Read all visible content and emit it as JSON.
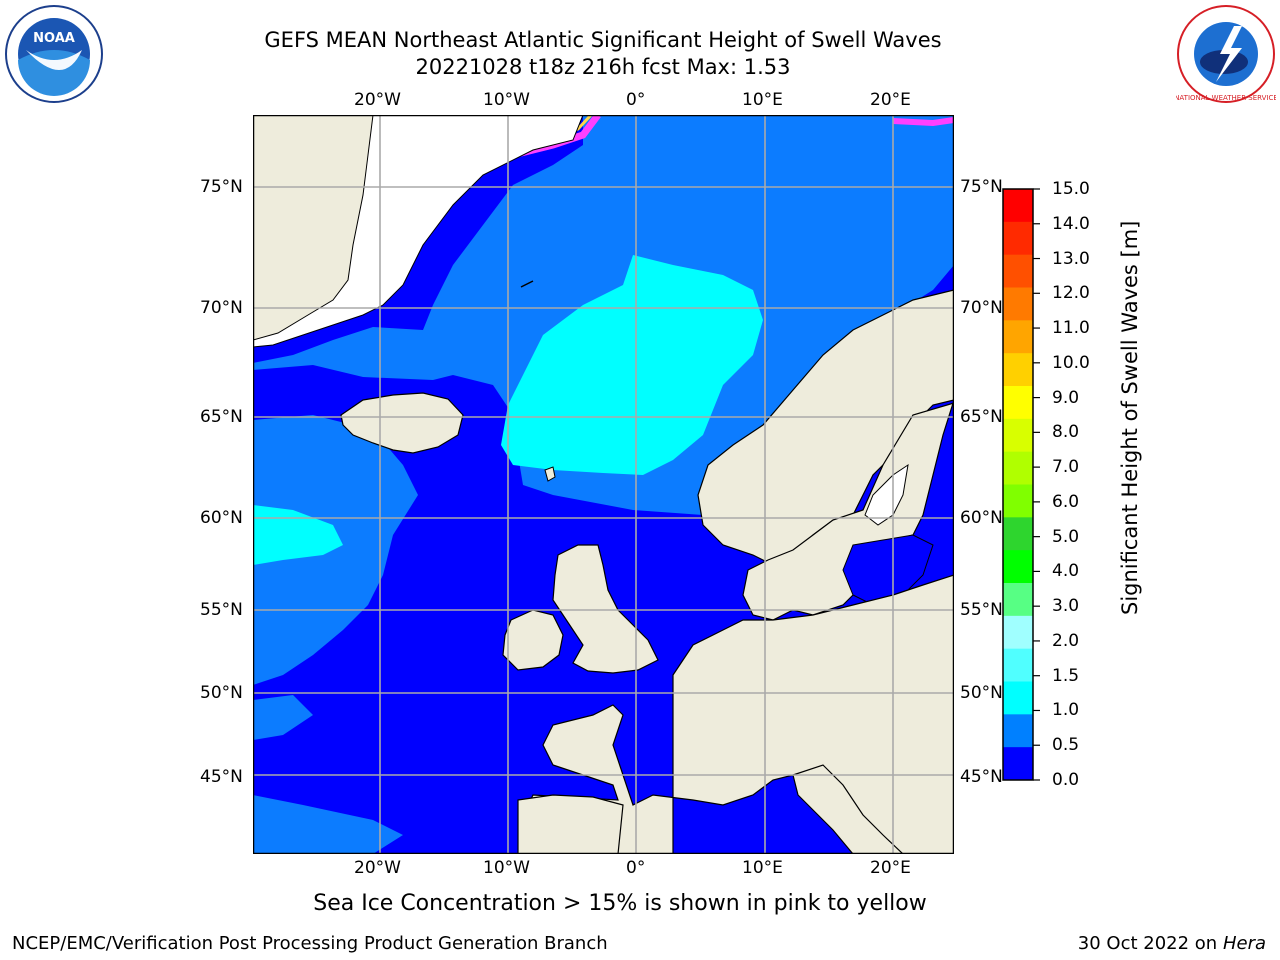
{
  "header": {
    "title_line1": "GEFS MEAN Northeast Atlantic Significant Height of Swell Waves",
    "title_line2": "20221028 t18z 216h fcst   Max: 1.53"
  },
  "logos": {
    "left": "NOAA",
    "right": "NATIONAL WEATHER SERVICE"
  },
  "map": {
    "lon_ticks": [
      "20°W",
      "10°W",
      "0°",
      "10°E",
      "20°E"
    ],
    "lat_ticks": [
      "75°N",
      "70°N",
      "65°N",
      "60°N",
      "55°N",
      "50°N",
      "45°N"
    ]
  },
  "colorbar": {
    "label": "Significant Height of Swell Waves [m]",
    "ticks": [
      "15.0",
      "14.0",
      "13.0",
      "12.0",
      "11.0",
      "10.0",
      "9.0",
      "8.0",
      "7.0",
      "6.0",
      "5.0",
      "4.0",
      "3.0",
      "2.0",
      "1.5",
      "1.0",
      "0.5",
      "0.0"
    ],
    "colors": [
      "#ff0000",
      "#ff2a00",
      "#ff5000",
      "#ff7a00",
      "#ffa500",
      "#ffd000",
      "#ffff00",
      "#d8ff00",
      "#b0ff00",
      "#80ff00",
      "#2ed52e",
      "#00ff00",
      "#57ff84",
      "#a0ffff",
      "#50ffff",
      "#00ffff",
      "#0080ff",
      "#0000ff"
    ]
  },
  "colors": {
    "land": "#eeecdc",
    "swell_0": "#0000ff",
    "swell_05": "#0c7cff",
    "swell_1": "#00ffff",
    "ice_pink": "#ff40ff",
    "ice_yellow": "#ffd54a",
    "grid": "#aaaaaa"
  },
  "caption": "Sea Ice Concentration > 15% is shown in pink to yellow",
  "footer": {
    "left": "NCEP/EMC/Verification Post Processing Product Generation Branch",
    "right_prefix": "30 Oct 2022 on ",
    "right_host": "Hera"
  }
}
